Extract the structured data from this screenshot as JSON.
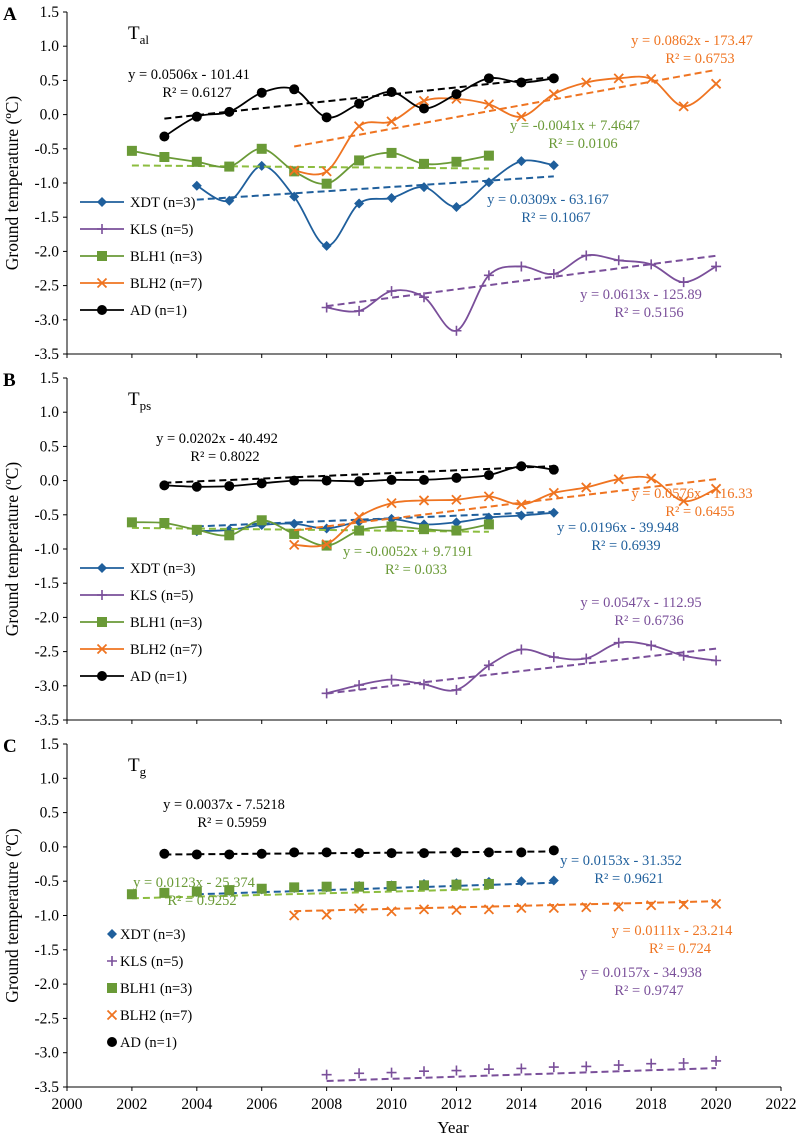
{
  "figure": {
    "xlabel": "Year",
    "x_ticks": [
      2000,
      2002,
      2004,
      2006,
      2008,
      2010,
      2012,
      2014,
      2016,
      2018,
      2020,
      2022
    ],
    "xlim": [
      2000,
      2022
    ],
    "legend_position": "bottom-left"
  },
  "colors": {
    "XDT": "#1f5f9c",
    "KLS": "#7a4f9a",
    "BLH1": "#6a9a37",
    "BLH2": "#ef7421",
    "AD": "#000000",
    "BLH1_trend": "#8cbd3f"
  },
  "chart_data": [
    {
      "panel_letter": "A",
      "title_main": "T",
      "title_sub": "al",
      "type": "line",
      "ylabel": "Ground temperature (ºC)",
      "ylim": [
        -3.5,
        1.5
      ],
      "y_ticks": [
        "1.5",
        "1.0",
        "0.5",
        "0.0",
        "-0.5",
        "-1.0",
        "-1.5",
        "-2.0",
        "-2.5",
        "-3.0",
        "-3.5"
      ],
      "smooth": true,
      "legend": [
        "XDT (n=3)",
        "KLS (n=5)",
        "BLH1 (n=3)",
        "BLH2 (n=7)",
        "AD (n=1)"
      ],
      "series": [
        {
          "name": "XDT",
          "marker": "diamond",
          "x": [
            2004,
            2005,
            2006,
            2007,
            2008,
            2009,
            2010,
            2011,
            2012,
            2013,
            2014,
            2015
          ],
          "y": [
            -1.04,
            -1.26,
            -0.75,
            -1.2,
            -1.92,
            -1.3,
            -1.22,
            -1.06,
            -1.35,
            -0.99,
            -0.68,
            -0.74
          ],
          "trend": {
            "x": [
              2004,
              2015
            ],
            "eq": "y = 0.0309x - 63.167",
            "r2": "R² = 0.1067",
            "k": 0.0309,
            "b": -63.167
          }
        },
        {
          "name": "KLS",
          "marker": "plus",
          "x": [
            2008,
            2009,
            2010,
            2011,
            2012,
            2013,
            2014,
            2015,
            2016,
            2017,
            2018,
            2019,
            2020
          ],
          "y": [
            -2.82,
            -2.87,
            -2.58,
            -2.67,
            -3.16,
            -2.35,
            -2.22,
            -2.33,
            -2.06,
            -2.13,
            -2.19,
            -2.45,
            -2.22
          ],
          "trend": {
            "x": [
              2008,
              2020
            ],
            "eq": "y = 0.0613x - 125.89",
            "r2": "R² = 0.5156",
            "k": 0.0613,
            "b": -125.89
          }
        },
        {
          "name": "BLH1",
          "marker": "square",
          "x": [
            2002,
            2003,
            2004,
            2005,
            2006,
            2007,
            2008,
            2009,
            2010,
            2011,
            2012,
            2013
          ],
          "y": [
            -0.53,
            -0.62,
            -0.69,
            -0.76,
            -0.5,
            -0.83,
            -1.01,
            -0.67,
            -0.56,
            -0.72,
            -0.69,
            -0.6
          ],
          "trend": {
            "x": [
              2002,
              2013
            ],
            "eq": "y = -0.0041x + 7.4647",
            "r2": "R² = 0.0106",
            "k": -0.0041,
            "b": 7.4647
          }
        },
        {
          "name": "BLH2",
          "marker": "x",
          "x": [
            2007,
            2008,
            2009,
            2010,
            2011,
            2012,
            2013,
            2014,
            2015,
            2016,
            2017,
            2018,
            2019,
            2020
          ],
          "y": [
            -0.82,
            -0.83,
            -0.17,
            -0.1,
            0.2,
            0.23,
            0.15,
            -0.03,
            0.3,
            0.47,
            0.53,
            0.52,
            0.12,
            0.45
          ],
          "trend": {
            "x": [
              2007,
              2020
            ],
            "eq": "y = 0.0862x - 173.47",
            "r2": "R² = 0.6753",
            "k": 0.0862,
            "b": -173.47
          }
        },
        {
          "name": "AD",
          "marker": "circle",
          "x": [
            2003,
            2004,
            2005,
            2006,
            2007,
            2008,
            2009,
            2010,
            2011,
            2012,
            2013,
            2014,
            2015
          ],
          "y": [
            -0.32,
            -0.03,
            0.04,
            0.32,
            0.37,
            -0.04,
            0.16,
            0.33,
            0.09,
            0.3,
            0.53,
            0.47,
            0.53
          ],
          "trend": {
            "x": [
              2003,
              2015
            ],
            "eq": "y = 0.0506x - 101.41",
            "r2": "R² = 0.6127",
            "k": 0.0506,
            "b": -101.41
          }
        }
      ]
    },
    {
      "panel_letter": "B",
      "title_main": "T",
      "title_sub": "ps",
      "type": "line",
      "ylabel": "Ground temperature (ºC)",
      "ylim": [
        -3.5,
        1.5
      ],
      "y_ticks": [
        "1.5",
        "1.0",
        "0.5",
        "0.0",
        "-0.5",
        "-1.0",
        "-1.5",
        "-2.0",
        "-2.5",
        "-3.0",
        "-3.5"
      ],
      "smooth": true,
      "legend": [
        "XDT (n=3)",
        "KLS (n=5)",
        "BLH1 (n=3)",
        "BLH2 (n=7)",
        "AD (n=1)"
      ],
      "series": [
        {
          "name": "XDT",
          "marker": "diamond",
          "x": [
            2004,
            2005,
            2006,
            2007,
            2008,
            2009,
            2010,
            2011,
            2012,
            2013,
            2014,
            2015
          ],
          "y": [
            -0.74,
            -0.72,
            -0.65,
            -0.63,
            -0.7,
            -0.6,
            -0.56,
            -0.64,
            -0.61,
            -0.54,
            -0.51,
            -0.47
          ],
          "trend": {
            "x": [
              2004,
              2015
            ],
            "eq": "y = 0.0196x - 39.948",
            "r2": "R² = 0.6939",
            "k": 0.0196,
            "b": -39.948
          }
        },
        {
          "name": "KLS",
          "marker": "plus",
          "x": [
            2008,
            2009,
            2010,
            2011,
            2012,
            2013,
            2014,
            2015,
            2016,
            2017,
            2018,
            2019,
            2020
          ],
          "y": [
            -3.11,
            -2.99,
            -2.91,
            -2.98,
            -3.06,
            -2.7,
            -2.47,
            -2.58,
            -2.6,
            -2.37,
            -2.41,
            -2.56,
            -2.63
          ],
          "trend": {
            "x": [
              2008,
              2020
            ],
            "eq": "y = 0.0547x - 112.95",
            "r2": "R² = 0.6736",
            "k": 0.0547,
            "b": -112.95
          }
        },
        {
          "name": "BLH1",
          "marker": "square",
          "x": [
            2002,
            2003,
            2004,
            2005,
            2006,
            2007,
            2008,
            2009,
            2010,
            2011,
            2012,
            2013
          ],
          "y": [
            -0.61,
            -0.62,
            -0.72,
            -0.8,
            -0.58,
            -0.78,
            -0.95,
            -0.73,
            -0.67,
            -0.71,
            -0.73,
            -0.64
          ],
          "trend": {
            "x": [
              2002,
              2013
            ],
            "eq": "y = -0.0052x + 9.7191",
            "r2": "R² = 0.033",
            "k": -0.0052,
            "b": 9.7191
          }
        },
        {
          "name": "BLH2",
          "marker": "x",
          "x": [
            2007,
            2008,
            2009,
            2010,
            2011,
            2012,
            2013,
            2014,
            2015,
            2016,
            2017,
            2018,
            2019,
            2020
          ],
          "y": [
            -0.94,
            -0.93,
            -0.53,
            -0.33,
            -0.29,
            -0.28,
            -0.23,
            -0.35,
            -0.18,
            -0.1,
            0.02,
            0.03,
            -0.3,
            -0.12
          ],
          "trend": {
            "x": [
              2007,
              2020
            ],
            "eq": "y = 0.0576x - 116.33",
            "r2": "R² = 0.6455",
            "k": 0.0576,
            "b": -116.33
          }
        },
        {
          "name": "AD",
          "marker": "circle",
          "x": [
            2003,
            2004,
            2005,
            2006,
            2007,
            2008,
            2009,
            2010,
            2011,
            2012,
            2013,
            2014,
            2015
          ],
          "y": [
            -0.07,
            -0.09,
            -0.08,
            -0.04,
            0.0,
            0.0,
            -0.01,
            0.01,
            0.01,
            0.04,
            0.08,
            0.21,
            0.16
          ],
          "trend": {
            "x": [
              2003,
              2015
            ],
            "eq": "y = 0.0202x - 40.492",
            "r2": "R² = 0.8022",
            "k": 0.0202,
            "b": -40.492
          }
        }
      ]
    },
    {
      "panel_letter": "C",
      "title_main": "T",
      "title_sub": "g",
      "type": "scatter",
      "ylabel": "Ground temperature (ºC)",
      "ylim": [
        -3.5,
        1.5
      ],
      "y_ticks": [
        "1.5",
        "1.0",
        "0.5",
        "0.0",
        "-0.5",
        "-1.0",
        "-1.5",
        "-2.0",
        "-2.5",
        "-3.0",
        "-3.5"
      ],
      "smooth": false,
      "legend": [
        "XDT (n=3)",
        "KLS (n=5)",
        "BLH1 (n=3)",
        "BLH2 (n=7)",
        "AD (n=1)"
      ],
      "series": [
        {
          "name": "XDT",
          "marker": "diamond",
          "x": [
            2004,
            2005,
            2006,
            2007,
            2008,
            2009,
            2010,
            2011,
            2012,
            2013,
            2014,
            2015
          ],
          "y": [
            -0.66,
            -0.64,
            -0.62,
            -0.6,
            -0.59,
            -0.57,
            -0.56,
            -0.54,
            -0.53,
            -0.51,
            -0.5,
            -0.49
          ],
          "trend": {
            "x": [
              2004,
              2015
            ],
            "eq": "y = 0.0153x - 31.352",
            "r2": "R² = 0.9621",
            "k": 0.0153,
            "b": -31.352
          }
        },
        {
          "name": "KLS",
          "marker": "plus",
          "x": [
            2008,
            2009,
            2010,
            2011,
            2012,
            2013,
            2014,
            2015,
            2016,
            2017,
            2018,
            2019,
            2020
          ],
          "y": [
            -3.32,
            -3.3,
            -3.29,
            -3.27,
            -3.26,
            -3.24,
            -3.23,
            -3.21,
            -3.2,
            -3.18,
            -3.16,
            -3.15,
            -3.12
          ],
          "trend": {
            "x": [
              2008,
              2020
            ],
            "eq": "y = 0.0157x - 34.938",
            "r2": "R² = 0.9747",
            "k": 0.0157,
            "b": -34.938
          }
        },
        {
          "name": "BLH1",
          "marker": "square",
          "x": [
            2002,
            2003,
            2004,
            2005,
            2006,
            2007,
            2008,
            2009,
            2010,
            2011,
            2012,
            2013
          ],
          "y": [
            -0.69,
            -0.67,
            -0.65,
            -0.63,
            -0.61,
            -0.59,
            -0.58,
            -0.58,
            -0.57,
            -0.56,
            -0.55,
            -0.54
          ],
          "trend": {
            "x": [
              2002,
              2013
            ],
            "eq": "y = 0.0123x - 25.374",
            "r2": "R² = 0.9252",
            "k": 0.0123,
            "b": -25.374
          }
        },
        {
          "name": "BLH2",
          "marker": "x",
          "x": [
            2007,
            2008,
            2009,
            2010,
            2011,
            2012,
            2013,
            2014,
            2015,
            2016,
            2017,
            2018,
            2019,
            2020
          ],
          "y": [
            -1.0,
            -0.99,
            -0.9,
            -0.94,
            -0.91,
            -0.92,
            -0.91,
            -0.89,
            -0.89,
            -0.88,
            -0.87,
            -0.85,
            -0.84,
            -0.83
          ],
          "trend": {
            "x": [
              2007,
              2020
            ],
            "eq": "y = 0.0111x - 23.214",
            "r2": "R² = 0.724",
            "k": 0.0111,
            "b": -23.214
          }
        },
        {
          "name": "AD",
          "marker": "circle",
          "x": [
            2003,
            2004,
            2005,
            2006,
            2007,
            2008,
            2009,
            2010,
            2011,
            2012,
            2013,
            2014,
            2015
          ],
          "y": [
            -0.1,
            -0.11,
            -0.11,
            -0.1,
            -0.08,
            -0.08,
            -0.09,
            -0.09,
            -0.09,
            -0.08,
            -0.08,
            -0.08,
            -0.05
          ],
          "trend": {
            "x": [
              2003,
              2015
            ],
            "eq": "y = 0.0037x - 7.5218",
            "r2": "R² = 0.5959",
            "k": 0.0037,
            "b": -7.5218
          }
        }
      ]
    }
  ]
}
